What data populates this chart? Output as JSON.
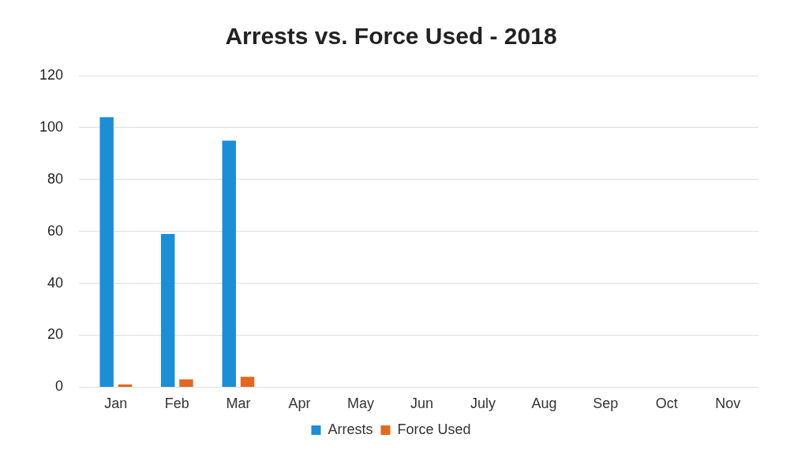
{
  "chart_data": {
    "type": "bar",
    "title": "Arrests vs. Force Used - 2018",
    "categories": [
      "Jan",
      "Feb",
      "Mar",
      "Apr",
      "May",
      "Jun",
      "July",
      "Aug",
      "Sep",
      "Oct",
      "Nov"
    ],
    "series": [
      {
        "name": "Arrests",
        "color": "#1a8fd6",
        "values": [
          104,
          59,
          95,
          null,
          null,
          null,
          null,
          null,
          null,
          null,
          null
        ]
      },
      {
        "name": "Force Used",
        "color": "#e3671f",
        "values": [
          1,
          3,
          4,
          null,
          null,
          null,
          null,
          null,
          null,
          null,
          null
        ]
      }
    ],
    "ylim": [
      0,
      120
    ],
    "yticks": [
      0,
      20,
      40,
      60,
      80,
      100,
      120
    ],
    "grid": "y",
    "legend": "bottom"
  }
}
